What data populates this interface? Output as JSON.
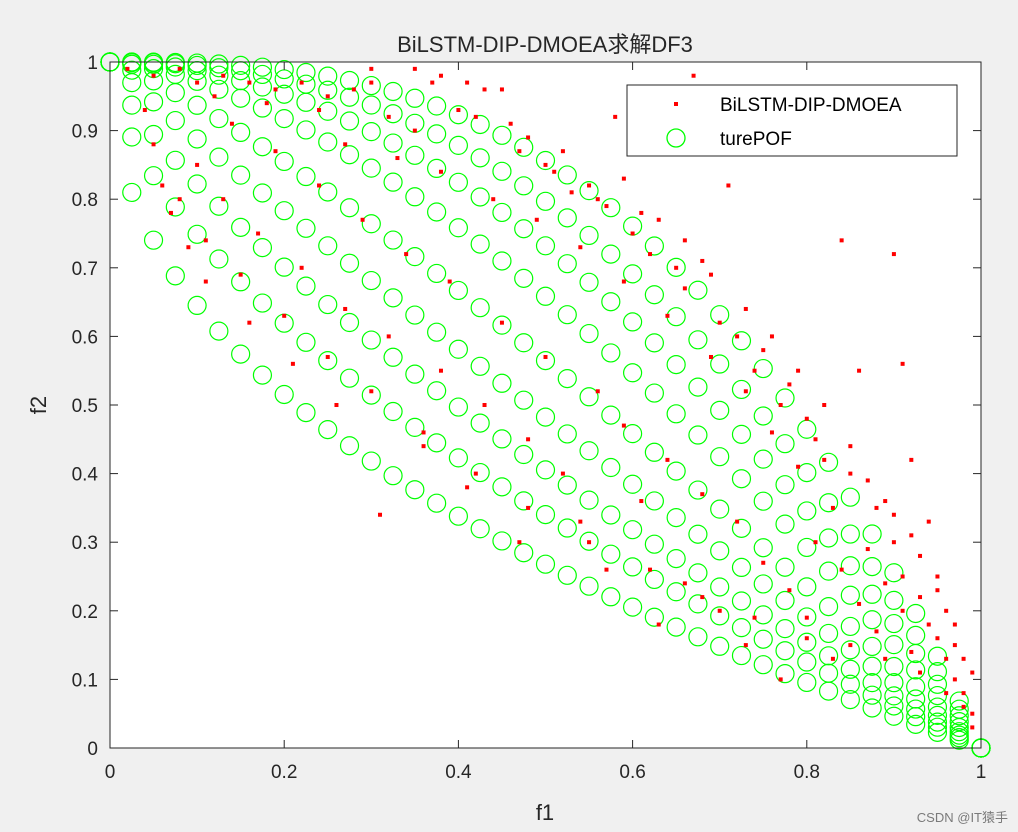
{
  "chart_data": {
    "type": "scatter",
    "title": "BiLSTM-DIP-DMOEA求解DF3",
    "xlabel": "f1",
    "ylabel": "f2",
    "xlim": [
      0,
      1
    ],
    "ylim": [
      0,
      1
    ],
    "xticks": [
      "0",
      "0.2",
      "0.4",
      "0.6",
      "0.8",
      "1"
    ],
    "yticks": [
      "0",
      "0.1",
      "0.2",
      "0.3",
      "0.4",
      "0.5",
      "0.6",
      "0.7",
      "0.8",
      "0.9",
      "1"
    ],
    "grid": false,
    "legend_position": "top-right",
    "colors": {
      "obtained": "#ff0000",
      "true_pof": "#00ff00"
    },
    "true_pof_front_exponents": [
      0.45,
      0.6,
      0.75,
      0.95,
      1.2,
      1.55,
      1.9,
      2.3,
      2.8
    ],
    "series": [
      {
        "name": "BiLSTM-DIP-DMOEA",
        "marker": "point",
        "color": "#ff0000",
        "points": [
          [
            0.02,
            0.99
          ],
          [
            0.05,
            0.98
          ],
          [
            0.08,
            0.99
          ],
          [
            0.1,
            0.97
          ],
          [
            0.13,
            0.98
          ],
          [
            0.16,
            0.97
          ],
          [
            0.19,
            0.96
          ],
          [
            0.22,
            0.97
          ],
          [
            0.25,
            0.95
          ],
          [
            0.28,
            0.96
          ],
          [
            0.3,
            0.97
          ],
          [
            0.3,
            0.99
          ],
          [
            0.32,
            0.92
          ],
          [
            0.35,
            0.9
          ],
          [
            0.37,
            0.97
          ],
          [
            0.4,
            0.93
          ],
          [
            0.42,
            0.92
          ],
          [
            0.43,
            0.96
          ],
          [
            0.46,
            0.91
          ],
          [
            0.48,
            0.89
          ],
          [
            0.5,
            0.85
          ],
          [
            0.52,
            0.87
          ],
          [
            0.53,
            0.81
          ],
          [
            0.55,
            0.82
          ],
          [
            0.57,
            0.79
          ],
          [
            0.58,
            0.92
          ],
          [
            0.59,
            0.83
          ],
          [
            0.6,
            0.75
          ],
          [
            0.62,
            0.72
          ],
          [
            0.63,
            0.77
          ],
          [
            0.65,
            0.7
          ],
          [
            0.66,
            0.67
          ],
          [
            0.67,
            0.98
          ],
          [
            0.68,
            0.71
          ],
          [
            0.7,
            0.62
          ],
          [
            0.71,
            0.82
          ],
          [
            0.72,
            0.6
          ],
          [
            0.74,
            0.55
          ],
          [
            0.75,
            0.58
          ],
          [
            0.77,
            0.5
          ],
          [
            0.78,
            0.53
          ],
          [
            0.8,
            0.48
          ],
          [
            0.81,
            0.45
          ],
          [
            0.82,
            0.42
          ],
          [
            0.84,
            0.74
          ],
          [
            0.85,
            0.4
          ],
          [
            0.86,
            0.55
          ],
          [
            0.88,
            0.35
          ],
          [
            0.89,
            0.36
          ],
          [
            0.9,
            0.72
          ],
          [
            0.9,
            0.3
          ],
          [
            0.91,
            0.56
          ],
          [
            0.92,
            0.42
          ],
          [
            0.93,
            0.28
          ],
          [
            0.94,
            0.33
          ],
          [
            0.95,
            0.25
          ],
          [
            0.96,
            0.2
          ],
          [
            0.97,
            0.15
          ],
          [
            0.97,
            0.1
          ],
          [
            0.98,
            0.08
          ],
          [
            0.99,
            0.05
          ],
          [
            0.99,
            0.03
          ],
          [
            0.96,
            0.13
          ],
          [
            0.94,
            0.18
          ],
          [
            0.93,
            0.22
          ],
          [
            0.92,
            0.14
          ],
          [
            0.91,
            0.2
          ],
          [
            0.89,
            0.24
          ],
          [
            0.88,
            0.17
          ],
          [
            0.86,
            0.21
          ],
          [
            0.84,
            0.26
          ],
          [
            0.83,
            0.13
          ],
          [
            0.81,
            0.3
          ],
          [
            0.8,
            0.19
          ],
          [
            0.78,
            0.23
          ],
          [
            0.77,
            0.1
          ],
          [
            0.75,
            0.27
          ],
          [
            0.73,
            0.15
          ],
          [
            0.72,
            0.33
          ],
          [
            0.7,
            0.2
          ],
          [
            0.68,
            0.37
          ],
          [
            0.66,
            0.24
          ],
          [
            0.64,
            0.42
          ],
          [
            0.63,
            0.18
          ],
          [
            0.61,
            0.36
          ],
          [
            0.59,
            0.47
          ],
          [
            0.57,
            0.26
          ],
          [
            0.56,
            0.52
          ],
          [
            0.54,
            0.33
          ],
          [
            0.52,
            0.4
          ],
          [
            0.5,
            0.57
          ],
          [
            0.48,
            0.45
          ],
          [
            0.47,
            0.3
          ],
          [
            0.45,
            0.62
          ],
          [
            0.43,
            0.5
          ],
          [
            0.41,
            0.38
          ],
          [
            0.39,
            0.68
          ],
          [
            0.38,
            0.55
          ],
          [
            0.36,
            0.44
          ],
          [
            0.34,
            0.72
          ],
          [
            0.32,
            0.6
          ],
          [
            0.31,
            0.34
          ],
          [
            0.29,
            0.77
          ],
          [
            0.27,
            0.64
          ],
          [
            0.26,
            0.5
          ],
          [
            0.24,
            0.82
          ],
          [
            0.22,
            0.7
          ],
          [
            0.21,
            0.56
          ],
          [
            0.19,
            0.87
          ],
          [
            0.17,
            0.75
          ],
          [
            0.16,
            0.62
          ],
          [
            0.14,
            0.91
          ],
          [
            0.13,
            0.8
          ],
          [
            0.11,
            0.68
          ],
          [
            0.1,
            0.85
          ],
          [
            0.09,
            0.73
          ],
          [
            0.07,
            0.78
          ],
          [
            0.06,
            0.82
          ],
          [
            0.05,
            0.88
          ],
          [
            0.04,
            0.93
          ],
          [
            0.12,
            0.95
          ],
          [
            0.18,
            0.94
          ],
          [
            0.24,
            0.93
          ],
          [
            0.27,
            0.88
          ],
          [
            0.33,
            0.86
          ],
          [
            0.38,
            0.84
          ],
          [
            0.44,
            0.8
          ],
          [
            0.49,
            0.77
          ],
          [
            0.54,
            0.73
          ],
          [
            0.59,
            0.68
          ],
          [
            0.64,
            0.63
          ],
          [
            0.69,
            0.57
          ],
          [
            0.73,
            0.52
          ],
          [
            0.76,
            0.46
          ],
          [
            0.79,
            0.41
          ],
          [
            0.83,
            0.35
          ],
          [
            0.87,
            0.29
          ],
          [
            0.91,
            0.25
          ],
          [
            0.95,
            0.16
          ],
          [
            0.98,
            0.06
          ],
          [
            0.35,
            0.99
          ],
          [
            0.38,
            0.98
          ],
          [
            0.41,
            0.97
          ],
          [
            0.45,
            0.96
          ],
          [
            0.47,
            0.87
          ],
          [
            0.51,
            0.84
          ],
          [
            0.56,
            0.8
          ],
          [
            0.61,
            0.78
          ],
          [
            0.66,
            0.74
          ],
          [
            0.69,
            0.69
          ],
          [
            0.73,
            0.64
          ],
          [
            0.76,
            0.6
          ],
          [
            0.79,
            0.55
          ],
          [
            0.82,
            0.5
          ],
          [
            0.85,
            0.44
          ],
          [
            0.87,
            0.39
          ],
          [
            0.9,
            0.34
          ],
          [
            0.92,
            0.31
          ],
          [
            0.95,
            0.23
          ],
          [
            0.97,
            0.18
          ],
          [
            0.98,
            0.13
          ],
          [
            0.99,
            0.11
          ],
          [
            0.96,
            0.08
          ],
          [
            0.93,
            0.11
          ],
          [
            0.89,
            0.13
          ],
          [
            0.85,
            0.15
          ],
          [
            0.8,
            0.16
          ],
          [
            0.74,
            0.19
          ],
          [
            0.68,
            0.22
          ],
          [
            0.62,
            0.26
          ],
          [
            0.55,
            0.3
          ],
          [
            0.48,
            0.35
          ],
          [
            0.42,
            0.4
          ],
          [
            0.36,
            0.46
          ],
          [
            0.3,
            0.52
          ],
          [
            0.25,
            0.57
          ],
          [
            0.2,
            0.63
          ],
          [
            0.15,
            0.69
          ],
          [
            0.11,
            0.74
          ],
          [
            0.08,
            0.8
          ]
        ]
      },
      {
        "name": "turePOF",
        "marker": "circle",
        "color": "#00ff00",
        "points": []
      }
    ],
    "source_credit": "CSDN @IT猿手"
  }
}
